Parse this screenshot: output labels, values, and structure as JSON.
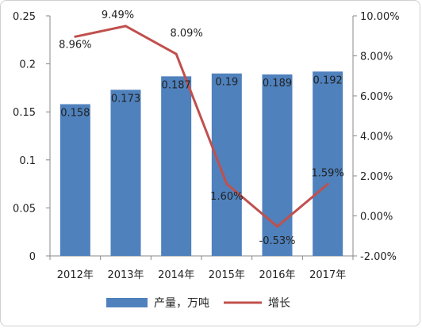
{
  "chart_data": {
    "type": "bar",
    "categories": [
      "2012年",
      "2013年",
      "2014年",
      "2015年",
      "2016年",
      "2017年"
    ],
    "series": [
      {
        "name": "产量，万吨",
        "type": "bar",
        "axis": "left",
        "values": [
          0.158,
          0.173,
          0.187,
          0.19,
          0.189,
          0.192
        ],
        "labels": [
          "0.158",
          "0.173",
          "0.187",
          "0.19",
          "0.189",
          "0.192"
        ],
        "color": "#4f81bd"
      },
      {
        "name": "增长",
        "type": "line",
        "axis": "right",
        "values": [
          8.96,
          9.49,
          8.09,
          1.6,
          -0.53,
          1.59
        ],
        "labels": [
          "8.96%",
          "9.49%",
          "8.09%",
          "1.60%",
          "-0.53%",
          "1.59%"
        ],
        "color": "#c0504d"
      }
    ],
    "left_axis": {
      "ylim": [
        0,
        0.25
      ],
      "ticks": [
        0,
        0.05,
        0.1,
        0.15,
        0.2,
        0.25
      ],
      "tick_labels": [
        "0",
        "0.05",
        "0.1",
        "0.15",
        "0.2",
        "0.25"
      ]
    },
    "right_axis": {
      "ylim": [
        -2,
        10
      ],
      "ticks": [
        -2,
        0,
        2,
        4,
        6,
        8,
        10
      ],
      "tick_labels": [
        "-2.00%",
        "0.00%",
        "2.00%",
        "4.00%",
        "6.00%",
        "8.00%",
        "10.00%"
      ]
    },
    "title": "",
    "xlabel": "",
    "ylabel": "",
    "grid": false,
    "legend_position": "bottom"
  }
}
